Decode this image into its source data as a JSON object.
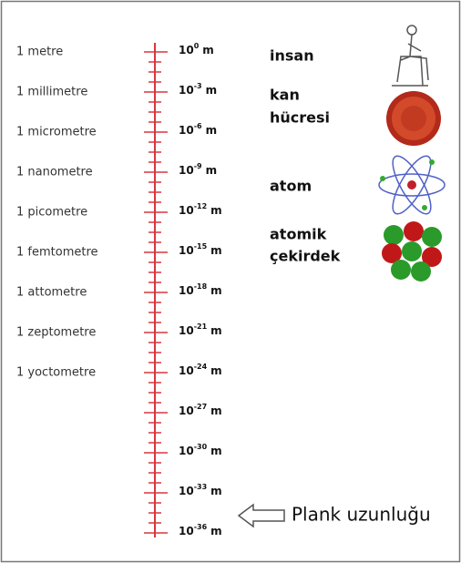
{
  "units": [
    "1 metre",
    "1 millimetre",
    "1 micrometre",
    "1 nanometre",
    "1 picometre",
    "1 femtometre",
    "1 attometre",
    "1 zeptometre",
    "1 yoctometre"
  ],
  "scale": [
    {
      "base": "10",
      "exponent": "0",
      "unit": "m"
    },
    {
      "base": "10",
      "exponent": "-3",
      "unit": "m"
    },
    {
      "base": "10",
      "exponent": "-6",
      "unit": "m"
    },
    {
      "base": "10",
      "exponent": "-9",
      "unit": "m"
    },
    {
      "base": "10",
      "exponent": "-12",
      "unit": "m"
    },
    {
      "base": "10",
      "exponent": "-15",
      "unit": "m"
    },
    {
      "base": "10",
      "exponent": "-18",
      "unit": "m"
    },
    {
      "base": "10",
      "exponent": "-21",
      "unit": "m"
    },
    {
      "base": "10",
      "exponent": "-24",
      "unit": "m"
    },
    {
      "base": "10",
      "exponent": "-27",
      "unit": "m"
    },
    {
      "base": "10",
      "exponent": "-30",
      "unit": "m"
    },
    {
      "base": "10",
      "exponent": "-33",
      "unit": "m"
    },
    {
      "base": "10",
      "exponent": "-36",
      "unit": "m"
    }
  ],
  "objects": [
    {
      "lines": [
        "insan"
      ]
    },
    {
      "lines": [
        "kan",
        "hücresi"
      ]
    },
    {
      "lines": [
        "atom"
      ]
    },
    {
      "lines": [
        "atomik",
        "çekirdek"
      ]
    }
  ],
  "planck_label": "Plank uzunluğu"
}
